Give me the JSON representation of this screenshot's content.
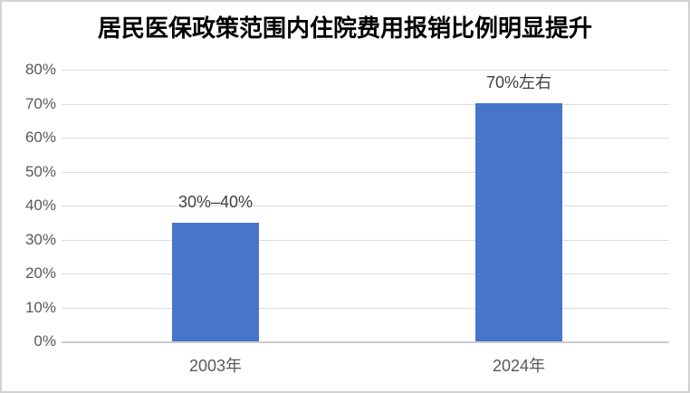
{
  "chart_data": {
    "type": "bar",
    "title": "居民医保政策范围内住院费用报销比例明显提升",
    "categories": [
      "2003年",
      "2024年"
    ],
    "values": [
      35,
      70
    ],
    "bar_labels": [
      "30%–40%",
      "70%左右"
    ],
    "xlabel": "",
    "ylabel": "",
    "ylim": [
      0,
      80
    ],
    "ytick_step": 10,
    "ytick_labels": [
      "0%",
      "10%",
      "20%",
      "30%",
      "40%",
      "50%",
      "60%",
      "70%",
      "80%"
    ],
    "grid": true,
    "legend": false,
    "colors": {
      "bar": "#4875cb",
      "title": "#000000",
      "tick_label": "#595959",
      "data_label": "#404040",
      "gridline": "#dcdcdc",
      "axis_line": "#cccccc",
      "background": "#ffffff",
      "frame_border": "#d2d2d2"
    }
  }
}
